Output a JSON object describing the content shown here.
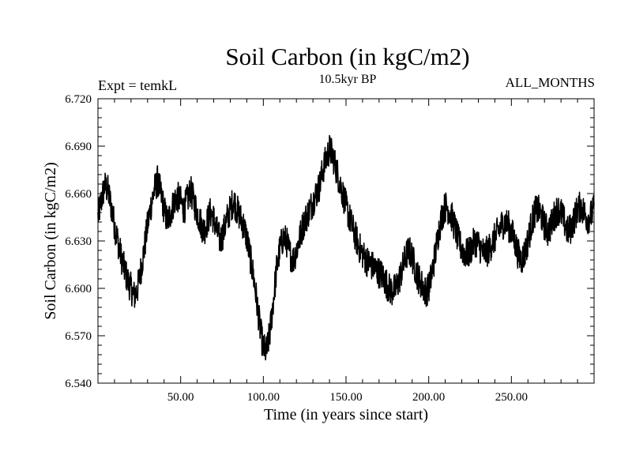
{
  "chart_data": {
    "type": "line",
    "title": "Soil Carbon (in kgC/m2)",
    "subtitle": "10.5kyr BP",
    "left_label": "Expt = temkL",
    "right_label": "ALL_MONTHS",
    "xlabel": "Time (in years since start)",
    "ylabel": "Soil Carbon (in kgC/m2)",
    "xlim": [
      0,
      300
    ],
    "ylim": [
      6.54,
      6.72
    ],
    "xticks": [
      50,
      100,
      150,
      200,
      250
    ],
    "xtick_labels": [
      "50.00",
      "100.00",
      "150.00",
      "200.00",
      "250.00"
    ],
    "yticks": [
      6.54,
      6.57,
      6.6,
      6.63,
      6.66,
      6.69,
      6.72
    ],
    "ytick_labels": [
      "6.540",
      "6.570",
      "6.600",
      "6.630",
      "6.660",
      "6.690",
      "6.720"
    ],
    "grid": false,
    "series": [
      {
        "name": "Soil Carbon",
        "color": "#000000",
        "line_band": 0.02,
        "x": [
          0,
          2,
          4,
          6,
          8,
          10,
          12,
          14,
          16,
          18,
          20,
          22,
          24,
          26,
          28,
          30,
          32,
          34,
          36,
          38,
          40,
          42,
          44,
          46,
          48,
          50,
          52,
          54,
          56,
          58,
          60,
          62,
          64,
          66,
          68,
          70,
          72,
          74,
          76,
          78,
          80,
          82,
          84,
          86,
          88,
          90,
          92,
          94,
          96,
          98,
          100,
          102,
          104,
          106,
          108,
          110,
          112,
          114,
          116,
          118,
          120,
          122,
          124,
          126,
          128,
          130,
          132,
          134,
          136,
          138,
          140,
          142,
          144,
          146,
          148,
          150,
          152,
          154,
          156,
          158,
          160,
          162,
          164,
          166,
          168,
          170,
          172,
          174,
          176,
          178,
          180,
          182,
          184,
          186,
          188,
          190,
          192,
          194,
          196,
          198,
          200,
          202,
          204,
          206,
          208,
          210,
          212,
          214,
          216,
          218,
          220,
          222,
          224,
          226,
          228,
          230,
          232,
          234,
          236,
          238,
          240,
          242,
          244,
          246,
          248,
          250,
          252,
          254,
          256,
          258,
          260,
          262,
          264,
          266,
          268,
          270,
          272,
          274,
          276,
          278,
          280,
          282,
          284,
          286,
          288,
          290,
          292,
          294,
          296,
          298,
          300
        ],
        "values": [
          6.645,
          6.655,
          6.665,
          6.662,
          6.652,
          6.64,
          6.63,
          6.62,
          6.612,
          6.605,
          6.6,
          6.595,
          6.6,
          6.612,
          6.625,
          6.64,
          6.652,
          6.662,
          6.668,
          6.66,
          6.65,
          6.642,
          6.648,
          6.655,
          6.658,
          6.655,
          6.65,
          6.656,
          6.662,
          6.655,
          6.648,
          6.642,
          6.636,
          6.642,
          6.648,
          6.644,
          6.636,
          6.63,
          6.636,
          6.644,
          6.65,
          6.656,
          6.65,
          6.645,
          6.64,
          6.632,
          6.62,
          6.608,
          6.592,
          6.575,
          6.562,
          6.56,
          6.572,
          6.592,
          6.612,
          6.625,
          6.632,
          6.63,
          6.622,
          6.618,
          6.624,
          6.632,
          6.64,
          6.645,
          6.65,
          6.655,
          6.66,
          6.665,
          6.675,
          6.682,
          6.688,
          6.684,
          6.676,
          6.668,
          6.66,
          6.652,
          6.645,
          6.638,
          6.632,
          6.626,
          6.622,
          6.618,
          6.616,
          6.614,
          6.612,
          6.61,
          6.608,
          6.604,
          6.6,
          6.598,
          6.6,
          6.605,
          6.612,
          6.62,
          6.624,
          6.62,
          6.612,
          6.606,
          6.602,
          6.598,
          6.6,
          6.61,
          6.622,
          6.636,
          6.646,
          6.652,
          6.65,
          6.645,
          6.638,
          6.63,
          6.625,
          6.622,
          6.622,
          6.626,
          6.63,
          6.628,
          6.624,
          6.622,
          6.624,
          6.628,
          6.632,
          6.636,
          6.64,
          6.642,
          6.64,
          6.636,
          6.63,
          6.622,
          6.618,
          6.622,
          6.63,
          6.64,
          6.648,
          6.65,
          6.646,
          6.64,
          6.636,
          6.64,
          6.646,
          6.65,
          6.648,
          6.642,
          6.636,
          6.638,
          6.644,
          6.65,
          6.652,
          6.648,
          6.644,
          6.646,
          6.65
        ]
      }
    ]
  }
}
